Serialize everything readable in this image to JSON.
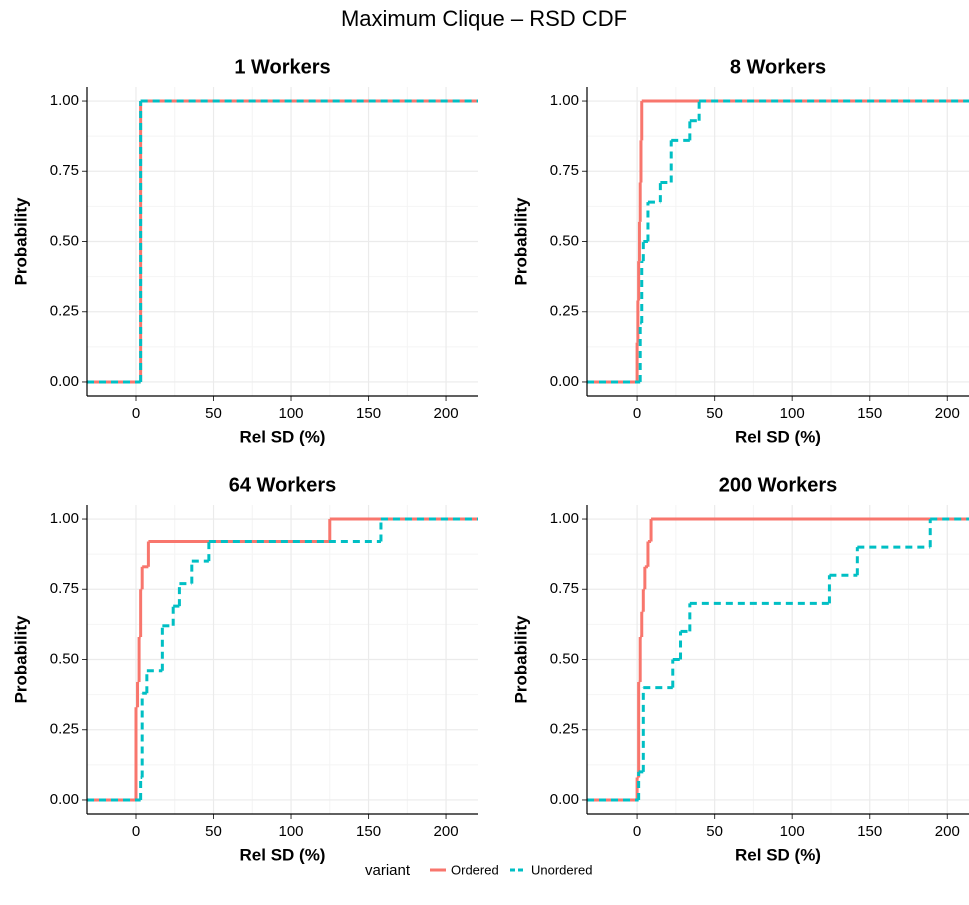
{
  "title": "Maximum Clique – RSD CDF",
  "legend": {
    "title": "variant"
  },
  "chart_data": [
    {
      "type": "step",
      "title": "1 Workers",
      "x_label": "Rel SD (%)",
      "y_label": "Probability",
      "xlim": [
        -31.6,
        220.6
      ],
      "ylim": [
        -0.05,
        1.05
      ],
      "xticks": [
        0,
        50,
        100,
        150,
        200
      ],
      "yticks": [
        {
          "value": 0,
          "label": "0.00"
        },
        {
          "value": 0.25,
          "label": "0.25"
        },
        {
          "value": 0.5,
          "label": "0.50"
        },
        {
          "value": 0.75,
          "label": "0.75"
        },
        {
          "value": 1,
          "label": "1.00"
        }
      ],
      "grid": true,
      "series": [
        {
          "name": "Ordered",
          "color": "#F8766D",
          "linetype": "solid",
          "x": [
            3
          ],
          "values": [
            1
          ]
        },
        {
          "name": "Unordered",
          "color": "#00BFC4",
          "linetype": "dashed",
          "x": [
            3
          ],
          "values": [
            1
          ]
        }
      ]
    },
    {
      "type": "step",
      "title": "8 Workers",
      "x_label": "Rel SD (%)",
      "y_label": "Probability",
      "xlim": [
        -32.3,
        214
      ],
      "ylim": [
        -0.05,
        1.05
      ],
      "xticks": [
        0,
        50,
        100,
        150,
        200
      ],
      "yticks": [
        {
          "value": 0,
          "label": "0.00"
        },
        {
          "value": 0.25,
          "label": "0.25"
        },
        {
          "value": 0.5,
          "label": "0.50"
        },
        {
          "value": 0.75,
          "label": "0.75"
        },
        {
          "value": 1,
          "label": "1.00"
        }
      ],
      "grid": true,
      "series": [
        {
          "name": "Ordered",
          "color": "#F8766D",
          "linetype": "solid",
          "x": [
            0,
            0.5,
            1,
            1.5,
            2,
            2.5,
            3
          ],
          "values": [
            0.14,
            0.29,
            0.43,
            0.57,
            0.71,
            0.86,
            1
          ]
        },
        {
          "name": "Unordered",
          "color": "#00BFC4",
          "linetype": "dashed",
          "x": [
            2,
            3,
            4,
            7,
            15,
            22,
            34,
            40
          ],
          "values": [
            0.21,
            0.43,
            0.5,
            0.64,
            0.71,
            0.86,
            0.93,
            1
          ]
        }
      ]
    },
    {
      "type": "step",
      "title": "64 Workers",
      "x_label": "Rel SD (%)",
      "y_label": "Probability",
      "xlim": [
        -31.6,
        220.6
      ],
      "ylim": [
        -0.05,
        1.05
      ],
      "xticks": [
        0,
        50,
        100,
        150,
        200
      ],
      "yticks": [
        {
          "value": 0,
          "label": "0.00"
        },
        {
          "value": 0.25,
          "label": "0.25"
        },
        {
          "value": 0.5,
          "label": "0.50"
        },
        {
          "value": 0.75,
          "label": "0.75"
        },
        {
          "value": 1,
          "label": "1.00"
        }
      ],
      "grid": true,
      "series": [
        {
          "name": "Ordered",
          "color": "#F8766D",
          "linetype": "solid",
          "x": [
            0,
            1,
            2,
            3,
            4,
            8,
            125
          ],
          "values": [
            0.33,
            0.42,
            0.58,
            0.75,
            0.83,
            0.92,
            1
          ]
        },
        {
          "name": "Unordered",
          "color": "#00BFC4",
          "linetype": "dashed",
          "x": [
            3,
            4,
            7,
            17,
            24,
            28,
            36,
            47,
            158
          ],
          "values": [
            0.08,
            0.38,
            0.46,
            0.62,
            0.69,
            0.77,
            0.85,
            0.92,
            1
          ]
        }
      ]
    },
    {
      "type": "step",
      "title": "200 Workers",
      "x_label": "Rel SD (%)",
      "y_label": "Probability",
      "xlim": [
        -32.3,
        214
      ],
      "ylim": [
        -0.05,
        1.05
      ],
      "xticks": [
        0,
        50,
        100,
        150,
        200
      ],
      "yticks": [
        {
          "value": 0,
          "label": "0.00"
        },
        {
          "value": 0.25,
          "label": "0.25"
        },
        {
          "value": 0.5,
          "label": "0.50"
        },
        {
          "value": 0.75,
          "label": "0.75"
        },
        {
          "value": 1,
          "label": "1.00"
        }
      ],
      "grid": true,
      "series": [
        {
          "name": "Ordered",
          "color": "#F8766D",
          "linetype": "solid",
          "x": [
            0,
            1,
            2,
            3,
            4,
            5,
            7,
            9
          ],
          "values": [
            0.08,
            0.42,
            0.58,
            0.67,
            0.75,
            0.83,
            0.92,
            1
          ]
        },
        {
          "name": "Unordered",
          "color": "#00BFC4",
          "linetype": "dashed",
          "x": [
            1,
            4,
            23,
            28,
            34,
            124,
            142,
            189
          ],
          "values": [
            0.1,
            0.4,
            0.5,
            0.6,
            0.7,
            0.8,
            0.9,
            1
          ]
        }
      ]
    }
  ]
}
